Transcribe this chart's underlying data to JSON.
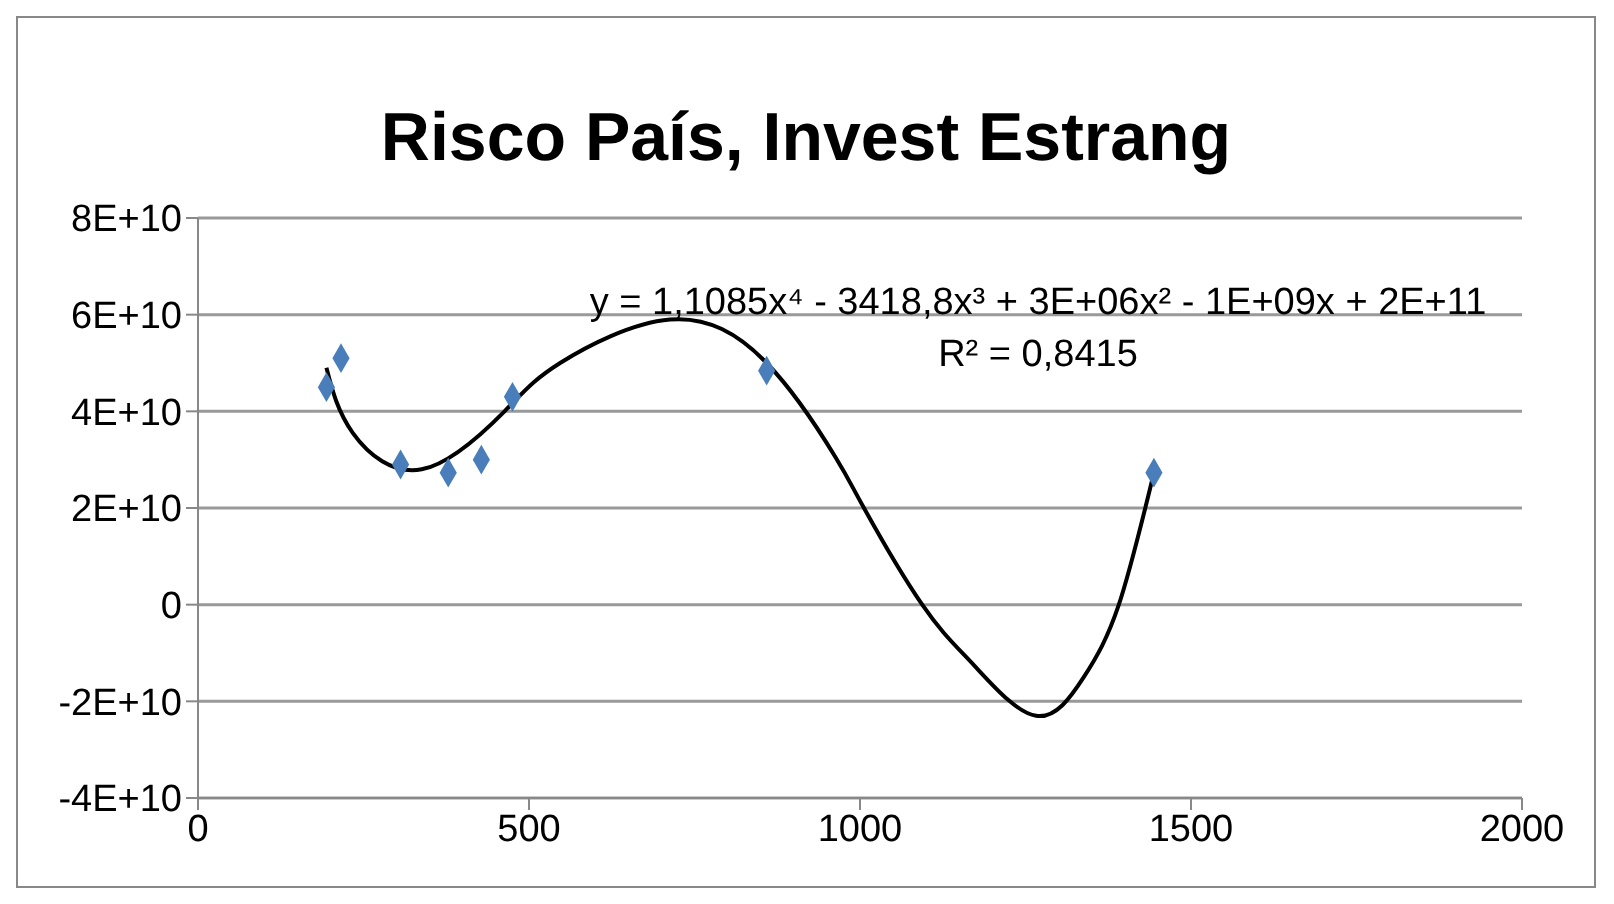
{
  "chart_data": {
    "type": "scatter",
    "title": "Risco País, Invest Estrang",
    "series": [
      {
        "color": "#4a7ebb",
        "marker": "diamond",
        "x": [
          194,
          216,
          306,
          378,
          428,
          475,
          859,
          1444
        ],
        "values": [
          45000000000.0,
          51000000000.0,
          29000000000.0,
          27300000000.0,
          30000000000.0,
          43000000000.0,
          48400000000.0,
          27300000000.0
        ]
      },
      {
        "type": "line",
        "color": "#000000",
        "marker": "none",
        "x": [
          194,
          234,
          338,
          463,
          547,
          713,
          859,
          963,
          1006,
          1094,
          1172,
          1266,
          1338,
          1391,
          1444
        ],
        "values": [
          49000000000.0,
          35500000000.0,
          28000000000.0,
          40000000000.0,
          50000000000.0,
          59000000000.0,
          50000000000.0,
          30500000000.0,
          20000000000.0,
          0,
          -12500000000.0,
          -23000000000.0,
          -15000000000.0,
          0,
          27300000000.0
        ]
      }
    ],
    "annotations": [
      {
        "text": "y = 1,1085x⁴ - 3418,8x³ + 3E+06x² - 1E+09x + 2E+11"
      },
      {
        "text": "R² = 0,8415"
      }
    ],
    "xlim": [
      0,
      2000
    ],
    "xticks": [
      0,
      500,
      1000,
      1500,
      2000
    ],
    "ylim": [
      -40000000000.0,
      80000000000.0
    ],
    "yticks": [
      {
        "value": -40000000000.0,
        "label": "-4E+10"
      },
      {
        "value": -20000000000.0,
        "label": "-2E+10"
      },
      {
        "value": 0,
        "label": "0"
      },
      {
        "value": 20000000000.0,
        "label": "2E+10"
      },
      {
        "value": 40000000000.0,
        "label": "4E+10"
      },
      {
        "value": 60000000000.0,
        "label": "6E+10"
      },
      {
        "value": 80000000000.0,
        "label": "8E+10"
      }
    ],
    "grid": "y",
    "legend": false
  }
}
